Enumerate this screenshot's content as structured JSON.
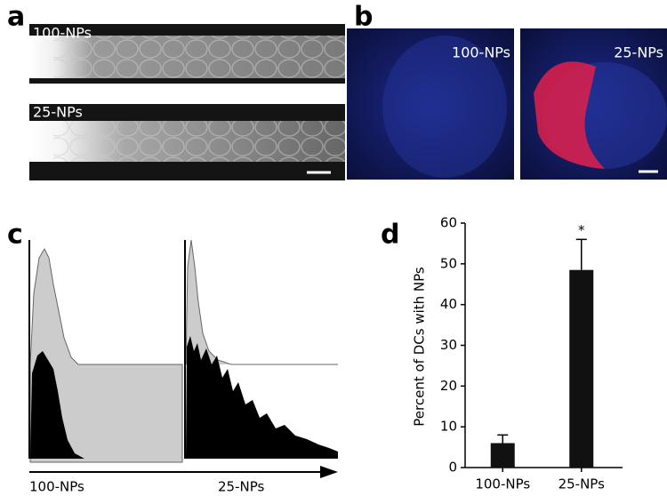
{
  "panels": {
    "a": {
      "label": "a",
      "images": [
        "100-NPs",
        "25-NPs"
      ]
    },
    "b": {
      "label": "b",
      "images": [
        "100-NPs",
        "25-NPs"
      ]
    },
    "c": {
      "label": "c",
      "x_labels": [
        "100-NPs",
        "25-NPs"
      ]
    }
  },
  "chart_data": {
    "type": "bar",
    "panel_label": "d",
    "ylabel": "Percent of DCs with NPs",
    "categories": [
      "100-NPs",
      "25-NPs"
    ],
    "values": [
      6,
      48.5
    ],
    "errors": [
      2,
      7.5
    ],
    "color": "#111111",
    "annotation": "*",
    "ylim": [
      0,
      60
    ],
    "yticks": [
      0,
      10,
      20,
      30,
      40,
      50,
      60
    ]
  }
}
